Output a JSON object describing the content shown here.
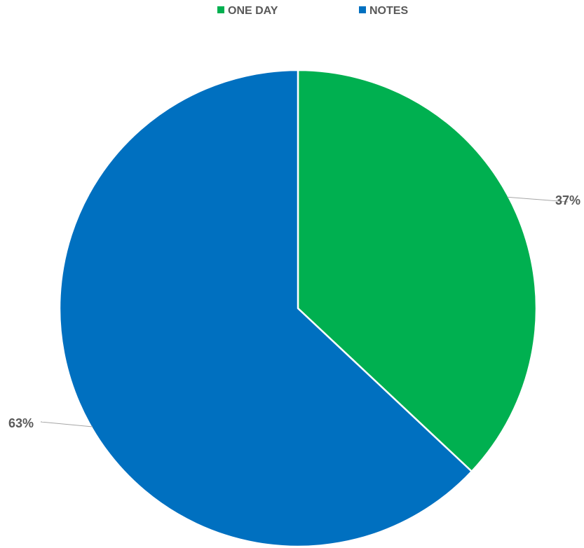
{
  "chart_data": {
    "type": "pie",
    "title": "",
    "legend": {
      "position": "top",
      "entries": [
        "ONE DAY",
        "NOTES"
      ]
    },
    "start_angle_deg": 0,
    "direction": "clockwise",
    "series": [
      {
        "categories": [
          "ONE DAY",
          "NOTES"
        ],
        "values": [
          37,
          63
        ],
        "labels": [
          "37%",
          "63%"
        ],
        "colors": [
          "#00b050",
          "#0070c0"
        ]
      }
    ]
  }
}
